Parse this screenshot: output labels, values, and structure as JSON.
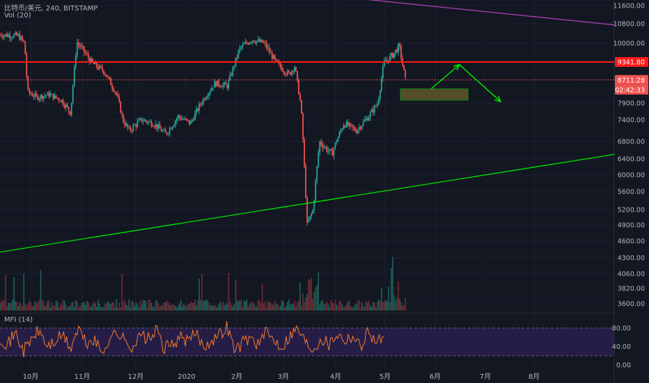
{
  "header": {
    "symbol": "比特币/美元, 240, BITSTAMP",
    "volume": "Vol (20)",
    "mfi": "MFI (14)"
  },
  "chart_data": {
    "type": "candlestick",
    "y_axis_ticks": [
      "11600.00",
      "10800.00",
      "10000.00",
      "9341.80",
      "8711.28",
      "02:42:33",
      "7900.00",
      "7400.00",
      "6800.00",
      "6400.00",
      "6000.00",
      "5600.00",
      "5200.00",
      "4900.00",
      "4600.00",
      "4300.00",
      "4060.00",
      "3820.00",
      "3600.00"
    ],
    "y_ticks_values": [
      11600,
      10800,
      10000,
      7900,
      7400,
      6800,
      6400,
      6000,
      5600,
      5200,
      4900,
      4600,
      4300,
      4060,
      3820,
      3600
    ],
    "x_axis_ticks": [
      "10月",
      "11月",
      "12月",
      "2020",
      "2月",
      "3月",
      "4月",
      "5月",
      "6月",
      "7月",
      "8月"
    ],
    "price_badges": {
      "resistance": {
        "label": "9341.80",
        "value": 9341.8,
        "color": "#ff1a1a"
      },
      "last": {
        "label": "8711.28",
        "value": 8711.28,
        "color": "#ef5350"
      },
      "countdown": {
        "label": "02:42:33",
        "color": "#ef5350"
      }
    },
    "price_path": [
      [
        0,
        10350
      ],
      [
        0.03,
        10300
      ],
      [
        0.04,
        10000
      ],
      [
        0.045,
        8300
      ],
      [
        0.06,
        8100
      ],
      [
        0.08,
        8200
      ],
      [
        0.1,
        8000
      ],
      [
        0.115,
        7600
      ],
      [
        0.125,
        10050
      ],
      [
        0.15,
        9300
      ],
      [
        0.17,
        9000
      ],
      [
        0.19,
        8200
      ],
      [
        0.2,
        7400
      ],
      [
        0.21,
        7100
      ],
      [
        0.23,
        7400
      ],
      [
        0.25,
        7300
      ],
      [
        0.27,
        7000
      ],
      [
        0.29,
        7500
      ],
      [
        0.31,
        7300
      ],
      [
        0.33,
        8000
      ],
      [
        0.35,
        8600
      ],
      [
        0.37,
        8500
      ],
      [
        0.39,
        9800
      ],
      [
        0.41,
        10150
      ],
      [
        0.43,
        10000
      ],
      [
        0.45,
        9300
      ],
      [
        0.47,
        8900
      ],
      [
        0.48,
        9200
      ],
      [
        0.49,
        7800
      ],
      [
        0.5,
        4900
      ],
      [
        0.51,
        5200
      ],
      [
        0.52,
        6800
      ],
      [
        0.54,
        6500
      ],
      [
        0.56,
        7300
      ],
      [
        0.58,
        7100
      ],
      [
        0.6,
        7500
      ],
      [
        0.615,
        7900
      ],
      [
        0.625,
        9300
      ],
      [
        0.64,
        9600
      ],
      [
        0.65,
        9900
      ],
      [
        0.66,
        8711
      ]
    ],
    "mfi_path": [
      60,
      45,
      70,
      30,
      55,
      75,
      40,
      50,
      65,
      35,
      80,
      45,
      55,
      25,
      60,
      70,
      50,
      40,
      65,
      55,
      75,
      35,
      45,
      60,
      50,
      70,
      40,
      55,
      65,
      85,
      30,
      50,
      60,
      45,
      70,
      55,
      40,
      65,
      80,
      50,
      35,
      60,
      45,
      70,
      55,
      65,
      40,
      75,
      50,
      60
    ],
    "mfi_levels": [
      {
        "label": "80.00",
        "value": 80
      },
      {
        "label": "40.00",
        "value": 40
      },
      {
        "label": "0.00",
        "value": 0
      }
    ],
    "mfi_range": [
      0,
      100
    ],
    "trendlines": [
      {
        "name": "support",
        "color": "#00e600",
        "from": {
          "x": 0,
          "price": 4400
        },
        "to": {
          "x": 1,
          "price": 6500
        }
      },
      {
        "name": "descending",
        "color": "#b23fb8",
        "from": {
          "x": 0.55,
          "price": 12000
        },
        "to": {
          "x": 1,
          "price": 10750
        }
      }
    ],
    "forecast_box": {
      "x0": 0.652,
      "x1": 0.762,
      "price_top": 8400,
      "price_bottom": 8000
    },
    "forecast_path": [
      [
        0.702,
        8400
      ],
      [
        0.748,
        9250
      ],
      [
        0.815,
        7950
      ]
    ],
    "colors": {
      "up": "#26a69a",
      "down": "#ef5350",
      "bg": "#131722",
      "mfi": "#f57c2b",
      "mfi_band": "#2a1f4d"
    }
  }
}
